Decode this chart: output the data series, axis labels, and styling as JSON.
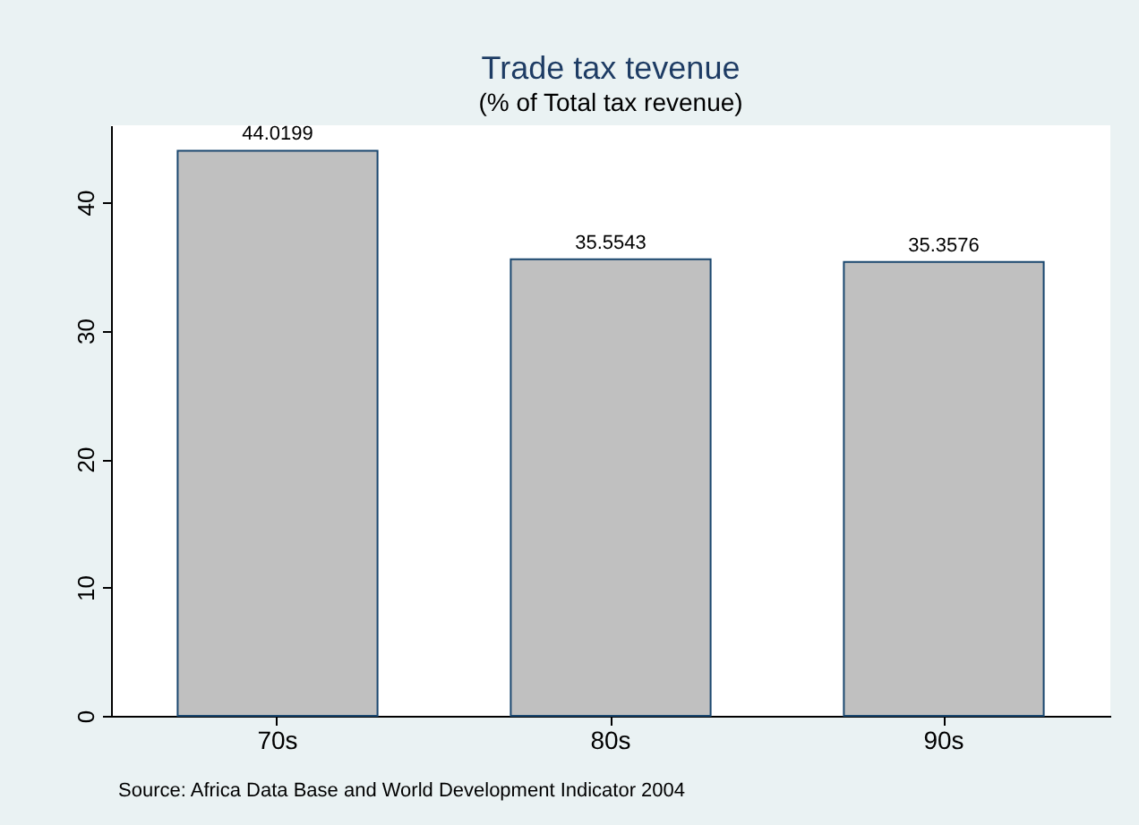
{
  "chart_data": {
    "type": "bar",
    "title": "Trade tax tevenue",
    "subtitle": "(% of Total tax revenue)",
    "categories": [
      "70s",
      "80s",
      "90s"
    ],
    "values": [
      44.0199,
      35.5543,
      35.3576
    ],
    "color": "#c0c0c0",
    "data_labels": true,
    "ylim": [
      0,
      46
    ],
    "yticks": [
      0,
      10,
      20,
      30,
      40
    ],
    "grid": false,
    "annotations": [
      "Source: Africa Data Base and World Development Indicator 2004"
    ]
  }
}
